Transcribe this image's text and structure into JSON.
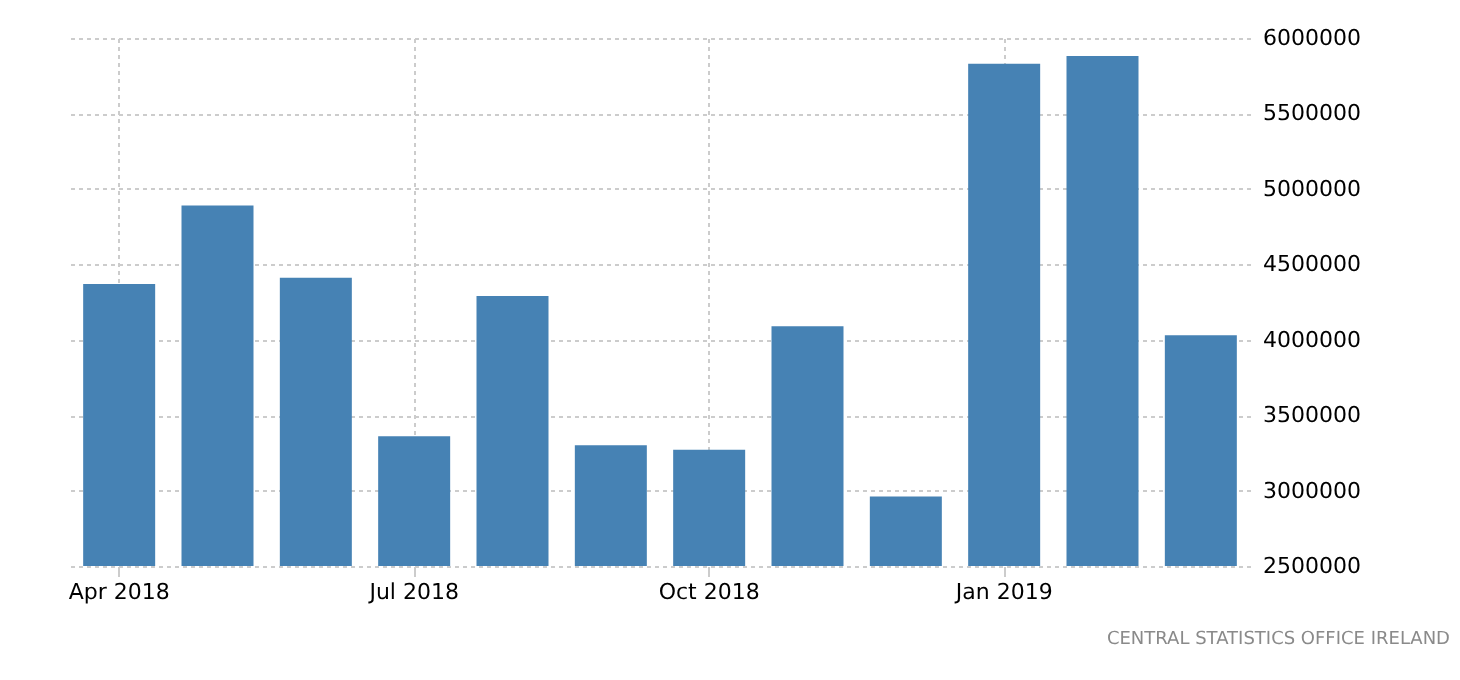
{
  "chart_data": {
    "type": "bar",
    "categories": [
      "Apr 2018",
      null,
      null,
      "Jul 2018",
      null,
      null,
      "Oct 2018",
      null,
      null,
      "Jan 2019",
      null,
      null
    ],
    "values": [
      4370000,
      4890000,
      4410000,
      3360000,
      4290000,
      3300000,
      3270000,
      4090000,
      2960000,
      5830000,
      5880000,
      4030000
    ],
    "color": "#4682b4",
    "ylim": [
      2500000,
      6000000
    ],
    "yticks": [
      2500000,
      3000000,
      3500000,
      4000000,
      4500000,
      5000000,
      5500000,
      6000000
    ],
    "grid": true,
    "annotations": [
      "CENTRAL STATISTICS OFFICE IRELAND"
    ]
  }
}
